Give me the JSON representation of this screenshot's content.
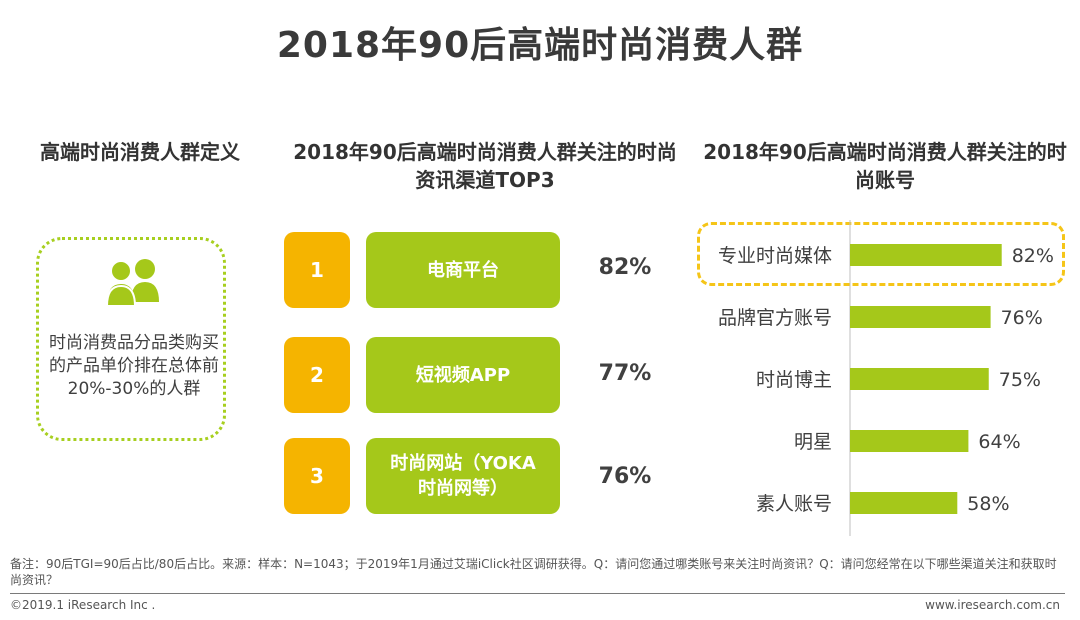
{
  "title": "2018年90后高端时尚消费人群",
  "definition": {
    "heading": "高端时尚消费人群定义",
    "icon": "people-icon",
    "text": "时尚消费品分品类购买的产品单价排在总体前20%-30%的人群"
  },
  "channels": {
    "heading": "2018年90后高端时尚消费人群关注的时尚资讯渠道TOP3",
    "items": [
      {
        "rank": "1",
        "label": "电商平台",
        "value": "82%"
      },
      {
        "rank": "2",
        "label": "短视频APP",
        "value": "77%"
      },
      {
        "rank": "3",
        "label": "时尚网站（YOKA时尚网等）",
        "value": "76%"
      }
    ]
  },
  "chart_data": {
    "type": "bar",
    "orientation": "horizontal",
    "title": "2018年90后高端时尚消费人群关注的时尚账号",
    "categories": [
      "专业时尚媒体",
      "品牌官方账号",
      "时尚博主",
      "明星",
      "素人账号"
    ],
    "values": [
      82,
      76,
      75,
      64,
      58
    ],
    "labels": [
      "82%",
      "76%",
      "75%",
      "64%",
      "58%"
    ],
    "highlighted": "专业时尚媒体",
    "bar_color": "#a5c81a",
    "highlight_color": "#f5c518"
  },
  "footer": {
    "note": "备注：90后TGI=90后占比/80后占比。来源：样本：N=1043；于2019年1月通过艾瑞iClick社区调研获得。Q：请问您通过哪类账号来关注时尚资讯？Q：请问您经常在以下哪些渠道关注和获取时尚资讯？",
    "copyright": "©2019.1 iResearch Inc .",
    "site": "www.iresearch.com.cn"
  }
}
